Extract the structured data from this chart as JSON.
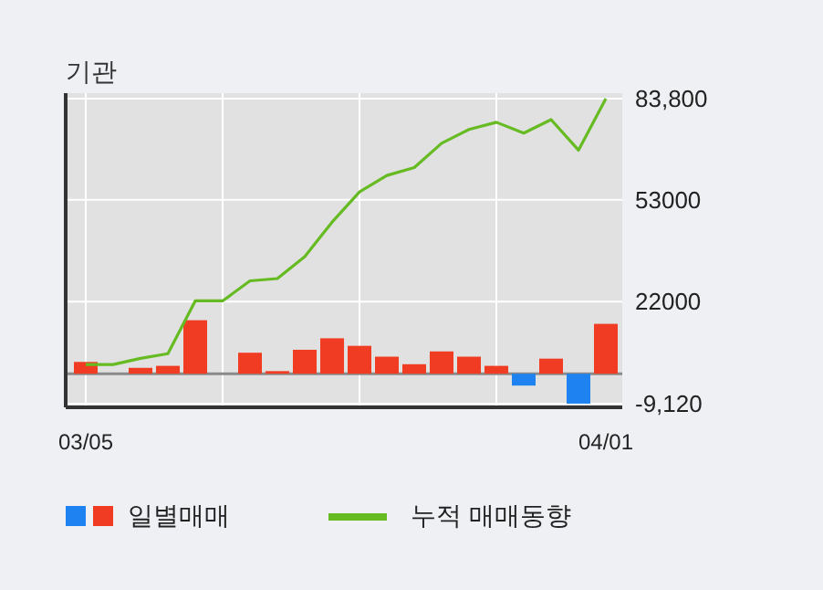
{
  "chart_data": {
    "type": "bar",
    "title": "기관",
    "categories": [
      "03/05",
      null,
      null,
      null,
      null,
      null,
      null,
      null,
      null,
      null,
      null,
      null,
      null,
      null,
      null,
      null,
      null,
      null,
      null,
      "04/01"
    ],
    "series": [
      {
        "name": "일별매매",
        "colors": [
          "#f03c23",
          "#f03c23",
          "#f03c23",
          "#f03c23",
          "#f03c23",
          "#f03c23",
          "#f03c23",
          "#f03c23",
          "#f03c23",
          "#f03c23",
          "#f03c23",
          "#f03c23",
          "#f03c23",
          "#f03c23",
          "#f03c23",
          "#f03c23",
          "#1e82f0",
          "#f03c23",
          "#1e82f0",
          "#f03c23"
        ],
        "values": [
          3600,
          0,
          1800,
          2400,
          16300,
          0,
          6400,
          800,
          7300,
          10800,
          8500,
          5200,
          2900,
          6800,
          5200,
          2400,
          -3600,
          4600,
          -9100,
          15200
        ]
      },
      {
        "name": "누적 매매동향",
        "type": "line",
        "color": "#66bb22",
        "values": [
          2800,
          2800,
          4700,
          6100,
          22200,
          22200,
          28300,
          29000,
          35700,
          46200,
          55400,
          60400,
          62800,
          70200,
          74400,
          76600,
          73300,
          77400,
          68100,
          83800
        ]
      }
    ],
    "ylim": [
      -9120,
      83800
    ],
    "yticks": [
      {
        "value": -9120,
        "label": "-9,120"
      },
      22000,
      53000,
      {
        "value": 83800,
        "label": "83,800"
      }
    ],
    "grid": true,
    "legend": "bottom"
  }
}
